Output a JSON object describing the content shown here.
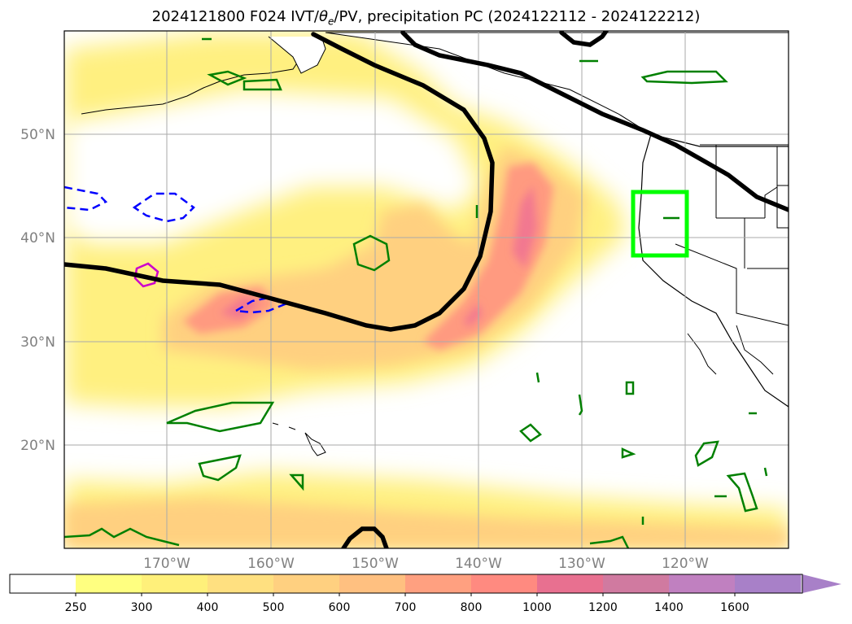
{
  "title": {
    "prefix": "2024121800 F024 IVT/",
    "theta": "θ",
    "theta_sub": "e",
    "suffix": "/PV, precipitation PC (2024122112 - 2024122212)"
  },
  "lat_labels": [
    "50°N",
    "40°N",
    "30°N",
    "20°N"
  ],
  "lon_labels": [
    "170°W",
    "160°W",
    "150°W",
    "140°W",
    "130°W",
    "120°W"
  ],
  "colorbar": {
    "ticks": [
      "250",
      "300",
      "400",
      "500",
      "600",
      "700",
      "800",
      "1000",
      "1200",
      "1400",
      "1600"
    ],
    "colors": [
      "#ffffff",
      "#ffff80",
      "#fff07a",
      "#ffe080",
      "#ffd080",
      "#ffc080",
      "#ffa080",
      "#ff8a80",
      "#e87090",
      "#d07aa0",
      "#c080c0",
      "#a880c8"
    ]
  },
  "colors": {
    "ivt_low": "#fff080",
    "ivt_mid": "#ffd080",
    "ivt_high": "#ff9a80",
    "ivt_max": "#f27890",
    "pv_line": "#000000",
    "theta_dashed": "#0000ff",
    "precip_contour": "#008000",
    "highlight_box": "#00ff00",
    "magenta_contour": "#cc00cc"
  }
}
